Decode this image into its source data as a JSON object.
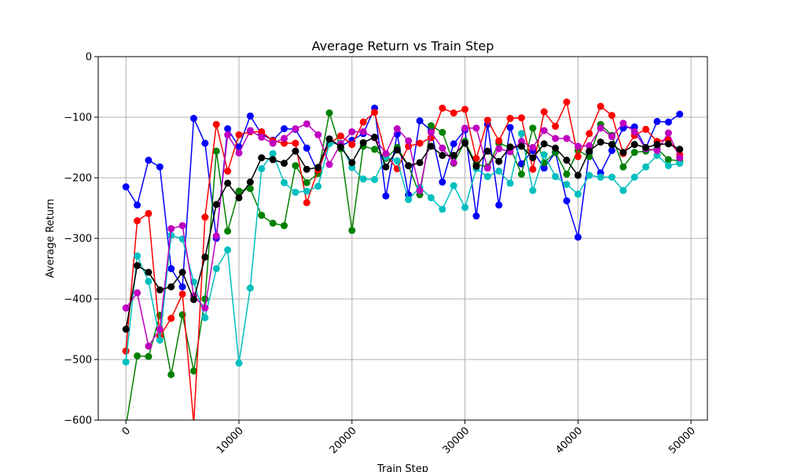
{
  "chart_data": {
    "type": "line",
    "title": "Average Return vs Train Step",
    "xlabel": "Train Step",
    "ylabel": "Average Return",
    "xlim": [
      -2450,
      51450
    ],
    "ylim": [
      -600,
      0
    ],
    "grid": true,
    "x_ticks": [
      0,
      10000,
      20000,
      30000,
      40000,
      50000
    ],
    "x_tick_labels": [
      "0",
      "10000",
      "20000",
      "30000",
      "40000",
      "50000"
    ],
    "y_ticks": [
      -600,
      -500,
      -400,
      -300,
      -200,
      -100,
      0
    ],
    "y_tick_labels": [
      "−600",
      "−500",
      "−400",
      "−300",
      "−200",
      "−100",
      "0"
    ],
    "x": [
      0,
      1000,
      2000,
      3000,
      4000,
      5000,
      6000,
      7000,
      8000,
      9000,
      10000,
      11000,
      12000,
      13000,
      14000,
      15000,
      16000,
      17000,
      18000,
      19000,
      20000,
      21000,
      22000,
      23000,
      24000,
      25000,
      26000,
      27000,
      28000,
      29000,
      30000,
      31000,
      32000,
      33000,
      34000,
      35000,
      36000,
      37000,
      38000,
      39000,
      40000,
      41000,
      42000,
      43000,
      44000,
      45000,
      46000,
      47000,
      48000,
      49000
    ],
    "series": [
      {
        "color": "#0000ff",
        "values": [
          -215,
          -245,
          -171,
          -182,
          -350,
          -380,
          -102,
          -143,
          -300,
          -119,
          -149,
          -98,
          -128,
          -138,
          -119,
          -120,
          -151,
          -192,
          -136,
          -148,
          -138,
          -127,
          -85,
          -230,
          -128,
          -228,
          -106,
          -122,
          -207,
          -144,
          -121,
          -263,
          -112,
          -245,
          -117,
          -177,
          -155,
          -184,
          -158,
          -238,
          -298,
          -158,
          -192,
          -155,
          -118,
          -116,
          -151,
          -107,
          -108,
          -95
        ]
      },
      {
        "color": "#008000",
        "values": [
          -610,
          -494,
          -495,
          -427,
          -525,
          -426,
          -519,
          -400,
          -156,
          -288,
          -222,
          -218,
          -262,
          -275,
          -279,
          -180,
          -208,
          -193,
          -93,
          -152,
          -287,
          -148,
          -153,
          -168,
          -150,
          -180,
          -228,
          -114,
          -125,
          -176,
          -140,
          -178,
          -182,
          -143,
          -150,
          -194,
          -118,
          -175,
          -158,
          -194,
          -155,
          -165,
          -112,
          -130,
          -182,
          -158,
          -156,
          -152,
          -170,
          -172
        ]
      },
      {
        "color": "#ff0000",
        "values": [
          -486,
          -271,
          -259,
          -462,
          -432,
          -392,
          -606,
          -265,
          -112,
          -189,
          -129,
          -124,
          -124,
          -139,
          -143,
          -143,
          -241,
          -187,
          -143,
          -131,
          -145,
          -108,
          -92,
          -163,
          -185,
          -148,
          -143,
          -134,
          -85,
          -93,
          -87,
          -168,
          -105,
          -139,
          -102,
          -101,
          -186,
          -91,
          -115,
          -75,
          -165,
          -127,
          -82,
          -97,
          -160,
          -130,
          -120,
          -140,
          -137,
          -162
        ]
      },
      {
        "color": "#00bfbf",
        "values": [
          -504,
          -329,
          -371,
          -468,
          -295,
          -301,
          -372,
          -431,
          -350,
          -319,
          -506,
          -382,
          -185,
          -160,
          -208,
          -224,
          -222,
          -214,
          -144,
          -143,
          -183,
          -202,
          -203,
          -166,
          -172,
          -236,
          -216,
          -233,
          -252,
          -213,
          -249,
          -185,
          -198,
          -189,
          -209,
          -127,
          -221,
          -162,
          -198,
          -211,
          -227,
          -196,
          -199,
          -199,
          -221,
          -199,
          -182,
          -163,
          -180,
          -176
        ]
      },
      {
        "color": "#bf00bf",
        "values": [
          -415,
          -390,
          -478,
          -450,
          -284,
          -279,
          -395,
          -415,
          -296,
          -129,
          -159,
          -122,
          -133,
          -143,
          -135,
          -119,
          -111,
          -129,
          -178,
          -144,
          -124,
          -124,
          -134,
          -160,
          -119,
          -139,
          -221,
          -125,
          -151,
          -175,
          -118,
          -118,
          -184,
          -152,
          -157,
          -140,
          -150,
          -122,
          -135,
          -135,
          -148,
          -147,
          -118,
          -132,
          -110,
          -124,
          -152,
          -155,
          -126,
          -167
        ]
      },
      {
        "color": "#000000",
        "values": [
          -450,
          -345,
          -356,
          -385,
          -380,
          -356,
          -401,
          -331,
          -244,
          -209,
          -233,
          -207,
          -167,
          -170,
          -176,
          -156,
          -186,
          -183,
          -136,
          -149,
          -175,
          -142,
          -133,
          -182,
          -154,
          -180,
          -175,
          -148,
          -163,
          -163,
          -143,
          -181,
          -156,
          -173,
          -149,
          -148,
          -167,
          -144,
          -151,
          -171,
          -196,
          -156,
          -141,
          -145,
          -158,
          -145,
          -150,
          -145,
          -144,
          -153
        ]
      }
    ]
  }
}
